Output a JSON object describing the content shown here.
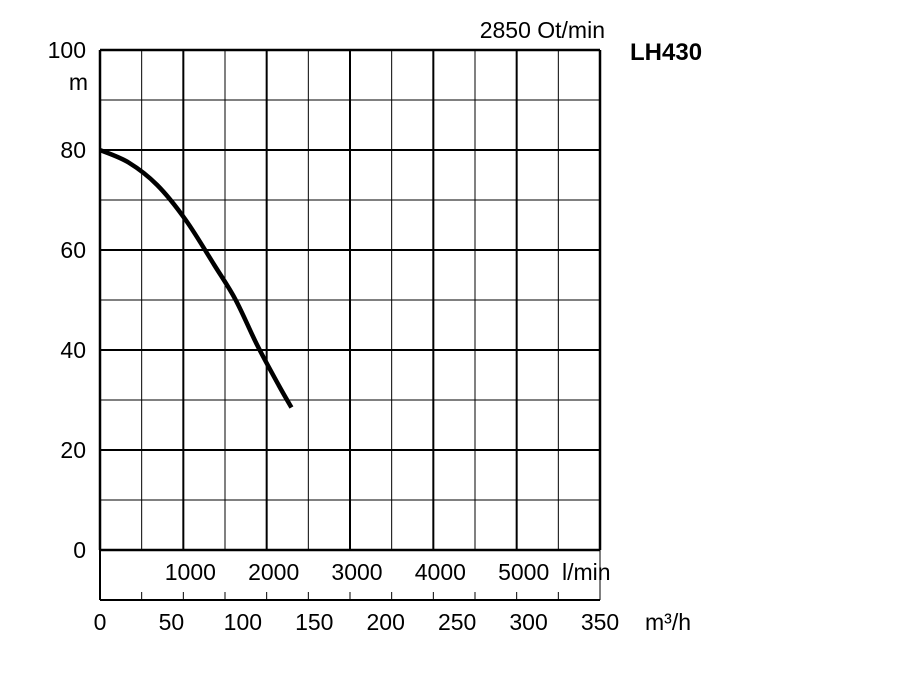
{
  "chart_data": {
    "type": "line",
    "model": "LH430",
    "speed_label": "2850 Ot/min",
    "y_unit": "m",
    "y_ticks": [
      "100",
      "80",
      "60",
      "40",
      "20",
      "0"
    ],
    "ylim": [
      0,
      100
    ],
    "x_unit_lmin": "l/min",
    "x_ticks_lmin": [
      "1000",
      "2000",
      "3000",
      "4000",
      "5000"
    ],
    "x_unit_m3h": "m³/h",
    "x_ticks_m3h": [
      "0",
      "50",
      "100",
      "150",
      "200",
      "250",
      "300",
      "350"
    ],
    "xlim_m3h": [
      0,
      350
    ],
    "grid": true,
    "series": [
      {
        "x_m3h": [
          0,
          20,
          40,
          60,
          80,
          95,
          110,
          125,
          134
        ],
        "y_m": [
          80,
          77.5,
          73,
          66,
          57,
          50,
          41,
          33,
          28.5
        ],
        "color": "#000000"
      }
    ]
  }
}
